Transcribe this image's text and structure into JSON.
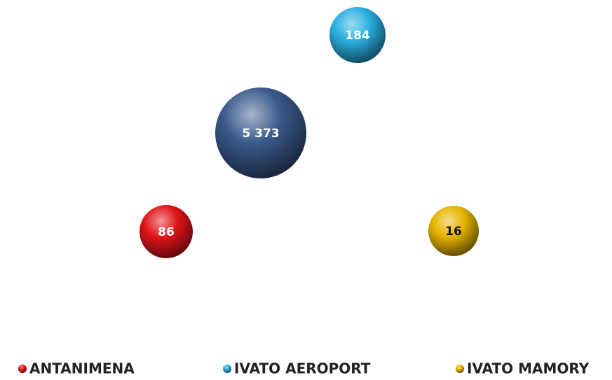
{
  "chart_data": {
    "type": "bubble",
    "series": [
      {
        "name": "ANTANIMENA",
        "color": "#e0141a",
        "values": [
          86
        ]
      },
      {
        "name": "IVATO AEROPORT",
        "color": "#2aaee0",
        "values": [
          184
        ]
      },
      {
        "name": "IVATO MAMORY",
        "color": "#e6b400",
        "values": [
          16
        ]
      },
      {
        "color": "#3a5a8c",
        "values": [
          5373
        ],
        "value_labels": [
          "5 373"
        ]
      }
    ]
  }
}
